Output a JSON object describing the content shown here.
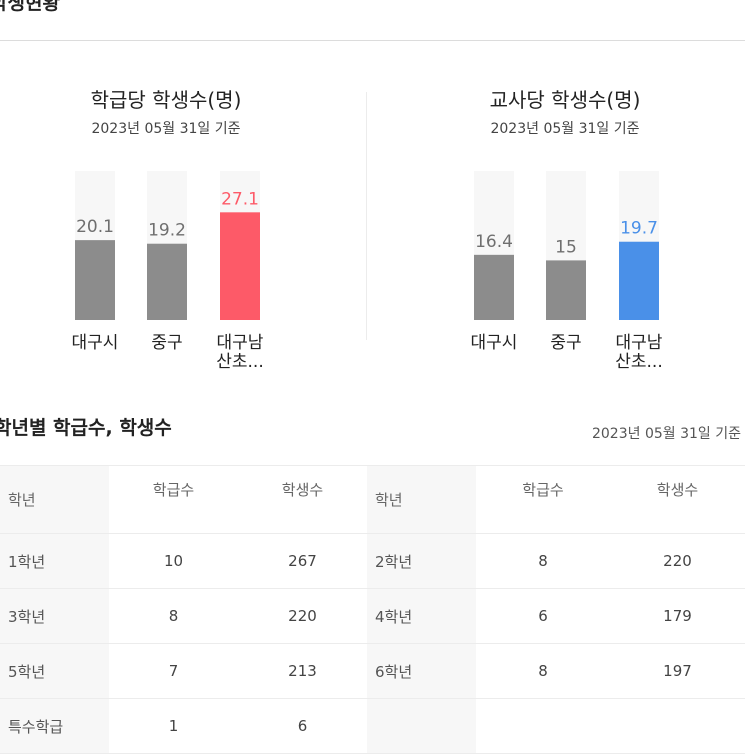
{
  "section_title": "학생현황",
  "chart_data": [
    {
      "type": "bar",
      "title": "학급당 학생수(명)",
      "subtitle": "2023년 05월 31일 기준",
      "categories": [
        "대구시",
        "중구",
        "대구남 산초..."
      ],
      "values": [
        20.1,
        19.2,
        27.1
      ],
      "value_labels": [
        "20.1",
        "19.2",
        "27.1"
      ],
      "highlight_index": 2,
      "colors": [
        "#8c8c8c",
        "#8c8c8c",
        "#fd5a68"
      ],
      "label_colors": [
        "#6f6f6f",
        "#6f6f6f",
        "#fd5a68"
      ],
      "track_color": "#f7f7f7",
      "ylim": [
        0,
        37.5
      ]
    },
    {
      "type": "bar",
      "title": "교사당 학생수(명)",
      "subtitle": "2023년 05월 31일 기준",
      "categories": [
        "대구시",
        "중구",
        "대구남 산초..."
      ],
      "values": [
        16.4,
        15,
        19.7
      ],
      "value_labels": [
        "16.4",
        "15",
        "19.7"
      ],
      "highlight_index": 2,
      "colors": [
        "#8c8c8c",
        "#8c8c8c",
        "#4a90e8"
      ],
      "label_colors": [
        "#6f6f6f",
        "#6f6f6f",
        "#4a90e8"
      ],
      "track_color": "#f7f7f7",
      "ylim": [
        0,
        37.5
      ]
    }
  ],
  "table": {
    "title": "학년별 학급수, 학생수",
    "date": "2023년 05월 31일 기준",
    "headers": {
      "grade": "학년",
      "classes": "학급수",
      "students": "학생수"
    },
    "rows": [
      {
        "left": {
          "grade": "1학년",
          "classes": "10",
          "students": "267"
        },
        "right": {
          "grade": "2학년",
          "classes": "8",
          "students": "220"
        }
      },
      {
        "left": {
          "grade": "3학년",
          "classes": "8",
          "students": "220"
        },
        "right": {
          "grade": "4학년",
          "classes": "6",
          "students": "179"
        }
      },
      {
        "left": {
          "grade": "5학년",
          "classes": "7",
          "students": "213"
        },
        "right": {
          "grade": "6학년",
          "classes": "8",
          "students": "197"
        }
      },
      {
        "left": {
          "grade": "특수학급",
          "classes": "1",
          "students": "6"
        },
        "right": {
          "grade": "",
          "classes": "",
          "students": ""
        }
      }
    ]
  }
}
